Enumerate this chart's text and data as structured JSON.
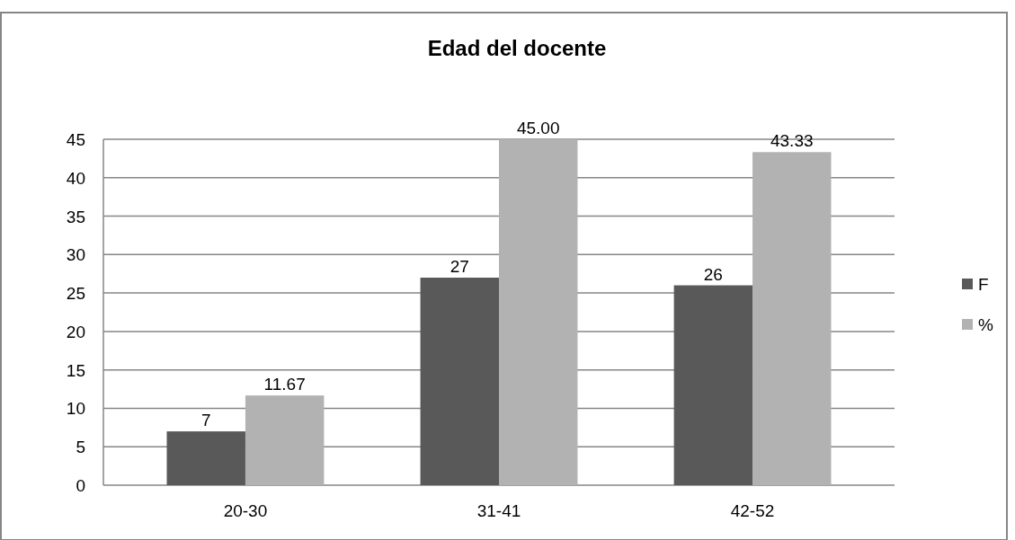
{
  "chart_data": {
    "type": "bar",
    "title": "Edad del docente",
    "categories": [
      "20-30",
      "31-41",
      "42-52"
    ],
    "series": [
      {
        "name": "F",
        "color": "#595959",
        "values": [
          7,
          27,
          26
        ],
        "value_labels": [
          "7",
          "27",
          "26"
        ]
      },
      {
        "name": "%",
        "color": "#b2b2b2",
        "values": [
          11.67,
          45,
          43.33
        ],
        "value_labels": [
          "11.67",
          "45.00",
          "43.33"
        ]
      }
    ],
    "ylim": [
      0,
      45
    ],
    "yticks": [
      0,
      5,
      10,
      15,
      20,
      25,
      30,
      35,
      40,
      45
    ],
    "grid": "y",
    "legend": "right"
  }
}
